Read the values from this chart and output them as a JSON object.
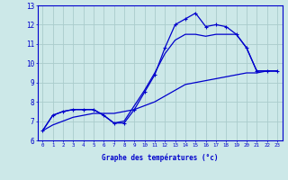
{
  "title": "Graphe des températures (°c)",
  "bg_color": "#cce8e8",
  "grid_color": "#aacccc",
  "line_color": "#0000cc",
  "xlim": [
    -0.5,
    23.5
  ],
  "ylim": [
    6,
    13
  ],
  "xticks": [
    0,
    1,
    2,
    3,
    4,
    5,
    6,
    7,
    8,
    9,
    10,
    11,
    12,
    13,
    14,
    15,
    16,
    17,
    18,
    19,
    20,
    21,
    22,
    23
  ],
  "yticks": [
    6,
    7,
    8,
    9,
    10,
    11,
    12,
    13
  ],
  "curve1_x": [
    0,
    1,
    2,
    3,
    4,
    5,
    6,
    7,
    8,
    9,
    10,
    11,
    12,
    13,
    14,
    15,
    16,
    17,
    18,
    19,
    20,
    21,
    22,
    23
  ],
  "curve1_y": [
    6.5,
    7.3,
    7.5,
    7.6,
    7.6,
    7.6,
    7.3,
    6.9,
    6.9,
    7.6,
    8.5,
    9.4,
    10.8,
    12.0,
    12.3,
    12.6,
    11.9,
    12.0,
    11.9,
    11.5,
    10.8,
    9.6,
    9.6,
    9.6
  ],
  "curve2_x": [
    0,
    1,
    2,
    3,
    4,
    5,
    6,
    7,
    8,
    9,
    10,
    11,
    12,
    13,
    14,
    15,
    16,
    17,
    18,
    19,
    20,
    21,
    22,
    23
  ],
  "curve2_y": [
    6.5,
    7.3,
    7.5,
    7.6,
    7.6,
    7.6,
    7.3,
    6.9,
    7.0,
    7.8,
    8.6,
    9.5,
    10.5,
    11.2,
    11.5,
    11.5,
    11.4,
    11.5,
    11.5,
    11.5,
    10.8,
    9.6,
    9.6,
    9.6
  ],
  "curve3_x": [
    0,
    1,
    2,
    3,
    4,
    5,
    6,
    7,
    8,
    9,
    10,
    11,
    12,
    13,
    14,
    15,
    16,
    17,
    18,
    19,
    20,
    21,
    22,
    23
  ],
  "curve3_y": [
    6.5,
    6.8,
    7.0,
    7.2,
    7.3,
    7.4,
    7.4,
    7.4,
    7.5,
    7.6,
    7.8,
    8.0,
    8.3,
    8.6,
    8.9,
    9.0,
    9.1,
    9.2,
    9.3,
    9.4,
    9.5,
    9.5,
    9.6,
    9.6
  ],
  "marker": "+"
}
